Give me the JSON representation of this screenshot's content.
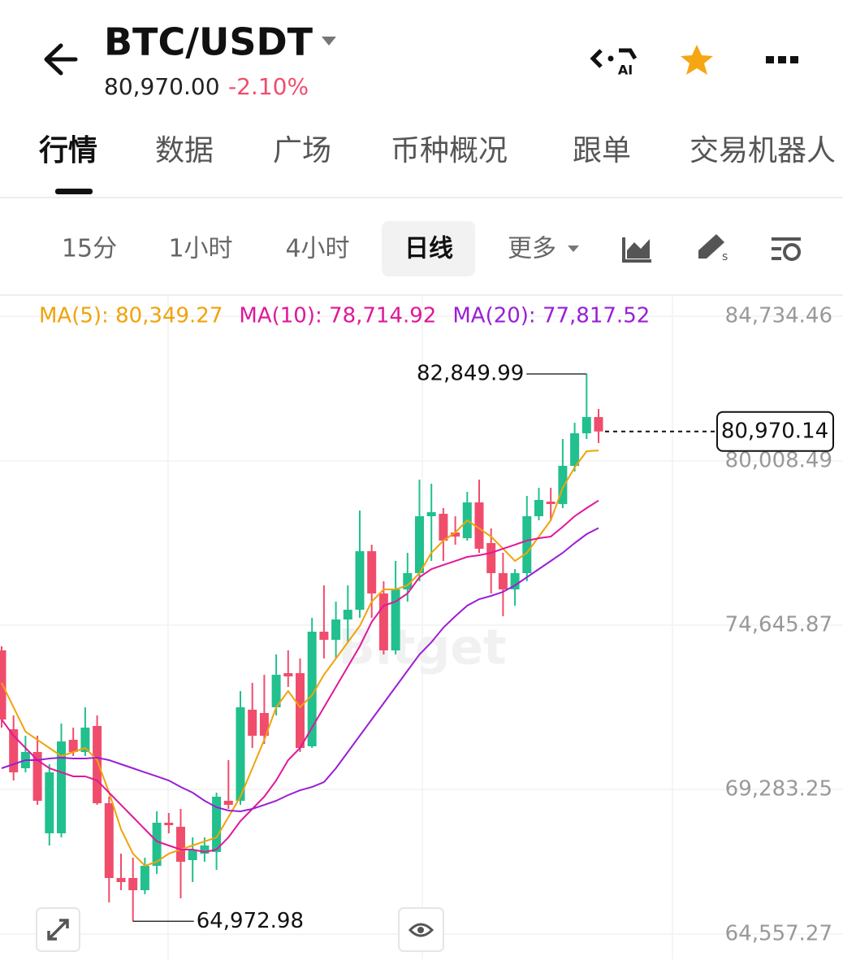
{
  "header": {
    "title": "BTC/USDT",
    "price": "80,970.00",
    "change": "-2.10%",
    "ai_label": "AI"
  },
  "tabs": [
    "行情",
    "数据",
    "广场",
    "币种概况",
    "跟单",
    "交易机器人"
  ],
  "intervals": [
    "15分",
    "1小时",
    "4小时",
    "日线",
    "更多"
  ],
  "chart_data": {
    "type": "candlestick",
    "watermark": "Bitget",
    "up_color": "#21c08e",
    "down_color": "#f04d6c",
    "open": [
      73822,
      71246,
      69972,
      70503,
      67848,
      67848,
      70901,
      70503,
      71353,
      68830,
      66388,
      66388,
      65990,
      66786,
      68193,
      68060,
      66972,
      67184,
      67237,
      68910,
      68910,
      71884,
      71777,
      71963,
      73078,
      73078,
      70689,
      74432,
      74167,
      74831,
      75149,
      77061,
      75680,
      73822,
      75813,
      76344,
      78203,
      78282,
      77672,
      77486,
      78654,
      77326,
      76344,
      75813,
      76344,
      78203,
      78680,
      78601,
      79849,
      80911,
      81442
    ],
    "high": [
      73955,
      71698,
      71034,
      71034,
      70105,
      71432,
      71300,
      71963,
      71698,
      69043,
      67184,
      67052,
      67052,
      68565,
      68512,
      68645,
      67715,
      67715,
      69176,
      70238,
      72494,
      72760,
      73025,
      73689,
      73822,
      73556,
      74884,
      75946,
      75415,
      75946,
      78388,
      77273,
      76079,
      76742,
      77008,
      79397,
      79265,
      78468,
      78203,
      78999,
      79397,
      77804,
      77008,
      76477,
      78866,
      79132,
      79132,
      80725,
      81256,
      82849.99,
      81707
    ],
    "low": [
      71300,
      69574,
      69839,
      68777,
      67450,
      67715,
      70370,
      70370,
      68777,
      65591,
      65990,
      64972.98,
      65857,
      66521,
      67848,
      65724,
      66255,
      66919,
      66653,
      68645,
      68777,
      70636,
      70769,
      71698,
      72627,
      70503,
      70636,
      73556,
      73556,
      74087,
      74884,
      74884,
      73689,
      73689,
      75415,
      76079,
      76742,
      76742,
      77273,
      77406,
      77008,
      75680,
      74937,
      75282,
      76079,
      78070,
      78070,
      78468,
      79663,
      80725,
      80592
    ],
    "close": [
      71565,
      69839,
      70503,
      68910,
      69839,
      70848,
      70503,
      71300,
      68830,
      66388,
      66255,
      65990,
      66786,
      68193,
      68114,
      66919,
      67317,
      67450,
      69043,
      68777,
      71963,
      71034,
      71034,
      73025,
      72972,
      70636,
      74432,
      74167,
      74831,
      75149,
      77061,
      75680,
      73822,
      75813,
      76344,
      78203,
      78335,
      77406,
      77539,
      78654,
      77141,
      76344,
      75813,
      76344,
      78203,
      78734,
      78601,
      79849,
      80911,
      81442,
      80970.14
    ],
    "series": [
      {
        "name": "MA(5): 80,349.27",
        "color": "#f0a30a",
        "values": [
          72760,
          71963,
          71167,
          70901,
          70636,
          70370,
          70503,
          70636,
          70238,
          69176,
          67981,
          67184,
          66786,
          66919,
          67184,
          67317,
          67450,
          67583,
          67715,
          68379,
          69043,
          69972,
          70901,
          71963,
          72494,
          71963,
          72362,
          73025,
          73556,
          74087,
          74618,
          75415,
          75813,
          75813,
          75946,
          76344,
          77008,
          77406,
          77672,
          78070,
          77804,
          77539,
          77141,
          76742,
          77008,
          77539,
          78070,
          79132,
          79796,
          80327,
          80349.27
        ]
      },
      {
        "name": "MA(10): 78,714.92",
        "color": "#e0189a",
        "values": [
          71565,
          71034,
          70636,
          70238,
          69972,
          69839,
          69707,
          69707,
          69574,
          69176,
          68777,
          68379,
          67981,
          67583,
          67450,
          67317,
          67317,
          67237,
          67317,
          67715,
          68246,
          68645,
          69043,
          69574,
          70238,
          70636,
          71300,
          71963,
          72627,
          73291,
          73955,
          74751,
          75282,
          75415,
          75680,
          76211,
          76477,
          76610,
          76742,
          76875,
          76928,
          77008,
          77141,
          77273,
          77406,
          77486,
          77539,
          77857,
          78203,
          78468,
          78714.92
        ]
      },
      {
        "name": "MA(20): 77,817.52",
        "color": "#9a1fd4",
        "values": [
          69972,
          70105,
          70238,
          70238,
          70291,
          70317,
          70291,
          70291,
          70317,
          70238,
          70105,
          69972,
          69839,
          69707,
          69574,
          69361,
          69176,
          68910,
          68698,
          68591,
          68565,
          68645,
          68777,
          68910,
          69096,
          69255,
          69361,
          69521,
          69972,
          70503,
          71034,
          71565,
          72096,
          72627,
          73158,
          73689,
          74087,
          74565,
          74937,
          75282,
          75494,
          75601,
          75733,
          75946,
          76211,
          76477,
          76742,
          77008,
          77326,
          77618,
          77817.52
        ]
      }
    ],
    "ylim": [
      63733,
      85371
    ],
    "yticks": [
      {
        "value": 84734.46,
        "label": "84,734.46"
      },
      {
        "value": 80008.49,
        "label": "80,008.49"
      },
      {
        "value": 74645.87,
        "label": "74,645.87"
      },
      {
        "value": 69283.25,
        "label": "69,283.25"
      },
      {
        "value": 64557.27,
        "label": "64,557.27"
      }
    ],
    "grid": true,
    "annotations": [
      {
        "value": 82849.99,
        "label": "82,849.99"
      },
      {
        "value": 64972.98,
        "label": "64,972.98"
      }
    ],
    "last_price": {
      "value": 80970.14,
      "label": "80,970.14"
    }
  }
}
